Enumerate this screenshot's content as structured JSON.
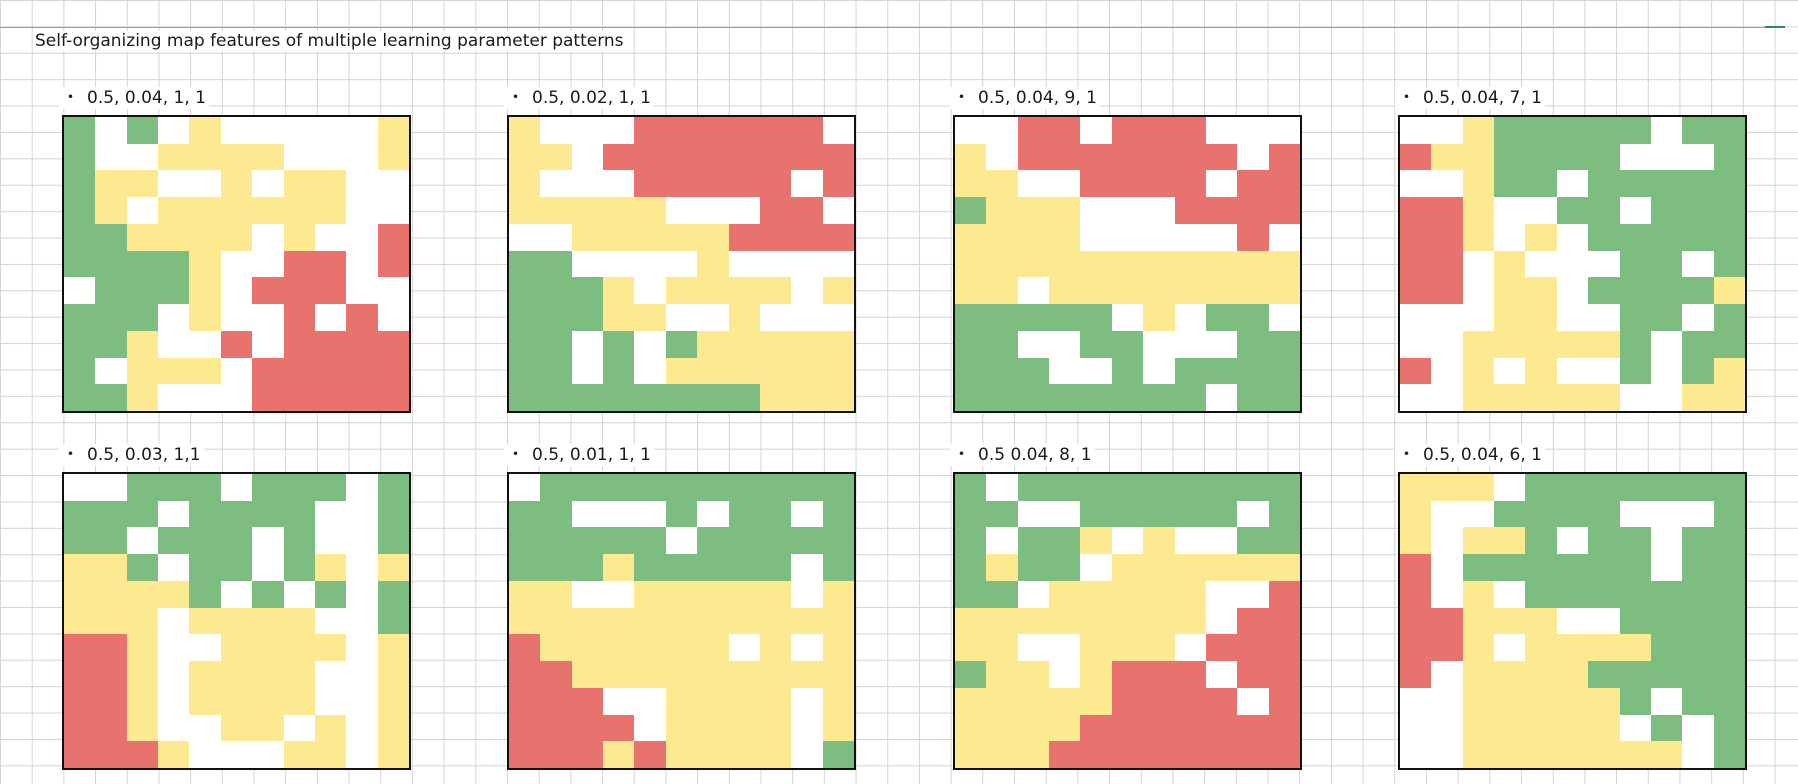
{
  "title": "Self-organizing map features of multiple learning parameter patterns",
  "bullet_glyph": "・",
  "colors": {
    "empty": "#ffffff",
    "green": "#7ebd80",
    "yellow": "#fde98f",
    "red": "#e8726d",
    "grid_line": "#d4d4d4"
  },
  "panels": [
    {
      "label": "0.5, 0.04, 1, 1",
      "cells": [
        "10102000002",
        "10022220002",
        "12200202200",
        "12022222200",
        "11222202003",
        "11112003303",
        "01112033300",
        "11102003030",
        "11200303333",
        "10222033333",
        "11200033333"
      ]
    },
    {
      "label": "0.5, 0.02, 1, 1",
      "cells": [
        "20003333330",
        "22033333333",
        "20003333303",
        "22222000330",
        "00222223333",
        "11000020000",
        "11120222202",
        "11122002000",
        "11010122222",
        "11010222222",
        "11111111222"
      ]
    },
    {
      "label": "0.5, 0.04, 9, 1",
      "cells": [
        "00330333000",
        "20333333303",
        "22003333033",
        "12220003333",
        "22220000030",
        "22222222222",
        "22022222222",
        "11111020110",
        "11001100011",
        "11100101111",
        "11111111011"
      ]
    },
    {
      "label": "0.5, 0.04, 7, 1",
      "cells": [
        "00211111011",
        "32211110001",
        "00211011111",
        "33200110111",
        "33202011111",
        "33020001101",
        "33022011112",
        "00022001101",
        "00222221011",
        "30202001012",
        "00222220022"
      ]
    },
    {
      "label": "0.5, 0.03, 1,1",
      "cells": [
        "00111011101",
        "11101111001",
        "11011101001",
        "22101101202",
        "22221010101",
        "22202222001",
        "33200222202",
        "33202222002",
        "33202222002",
        "33200220202",
        "33320002202"
      ]
    },
    {
      "label": "0.5, 0.01, 1, 1",
      "cells": [
        "01111111111",
        "11000101101",
        "11111011111",
        "11121111101",
        "22002222202",
        "22222222222",
        "32222220202",
        "33222222222",
        "33300222202",
        "33330222202",
        "33323222201"
      ]
    },
    {
      "label": "0.5 0.04,  8, 1",
      "cells": [
        "10111111111",
        "11001111101",
        "10112020011",
        "12110222222",
        "11022222003",
        "22222222033",
        "22002220333",
        "12202333033",
        "22222333303",
        "22223333333",
        "22233333333"
      ]
    },
    {
      "label": "0.5, 0.04, 6, 1",
      "cells": [
        "22201111111",
        "20011110001",
        "20221011011",
        "30111111011",
        "30201111111",
        "33222001111",
        "33202222111",
        "30222211111",
        "00222221011",
        "00222220101",
        "00222222201"
      ]
    }
  ]
}
